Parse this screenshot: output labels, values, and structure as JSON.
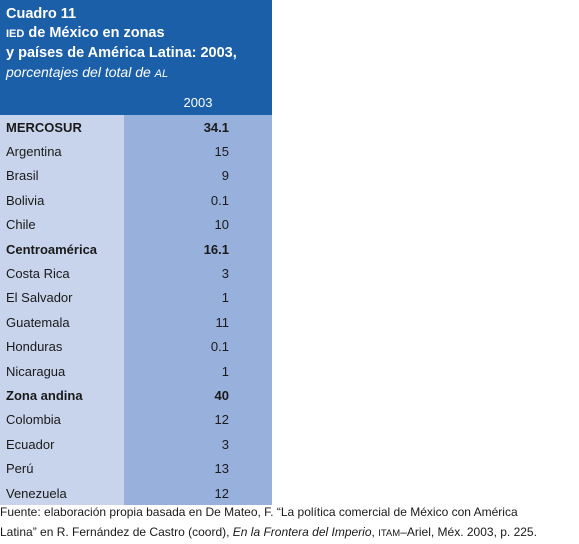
{
  "table": {
    "title": "Cuadro 11",
    "heading_prefix": "IED",
    "heading_line1_rest": " de México en zonas",
    "heading_line2": "y países de América Latina: 2003,",
    "subtitle_text": "porcentajes del total de ",
    "subtitle_suffix": "AL",
    "column_header": "2003",
    "rows": [
      {
        "label": "MERCOSUR",
        "value": "34.1",
        "group": true
      },
      {
        "label": "Argentina",
        "value": "15",
        "group": false
      },
      {
        "label": "Brasil",
        "value": "9",
        "group": false
      },
      {
        "label": "Bolivia",
        "value": "0.1",
        "group": false
      },
      {
        "label": "Chile",
        "value": "10",
        "group": false
      },
      {
        "label": "Centroamérica",
        "value": "16.1",
        "group": true
      },
      {
        "label": "Costa Rica",
        "value": "3",
        "group": false
      },
      {
        "label": "El Salvador",
        "value": "1",
        "group": false
      },
      {
        "label": "Guatemala",
        "value": "11",
        "group": false
      },
      {
        "label": "Honduras",
        "value": "0.1",
        "group": false
      },
      {
        "label": "Nicaragua",
        "value": "1",
        "group": false
      },
      {
        "label": "Zona andina",
        "value": "40",
        "group": true
      },
      {
        "label": "Colombia",
        "value": "12",
        "group": false
      },
      {
        "label": "Ecuador",
        "value": "3",
        "group": false
      },
      {
        "label": "Perú",
        "value": "13",
        "group": false
      },
      {
        "label": "Venezuela",
        "value": "12",
        "group": false
      }
    ]
  },
  "source": {
    "line1": "Fuente: elaboración propia basada en De Mateo, F. “La política comercial de México con América",
    "line2_a": "Latina” en R. Fernández de Castro (coord), ",
    "line2_italic": "En la Frontera del Imperio",
    "line2_b": ", ",
    "line2_sc": "ITAM",
    "line2_c": "–Ariel, Méx. 2003, p. 225."
  },
  "colors": {
    "header_bg": "#1a5fa8",
    "label_bg": "#c8d4ec",
    "value_bg": "#98b0dc"
  }
}
